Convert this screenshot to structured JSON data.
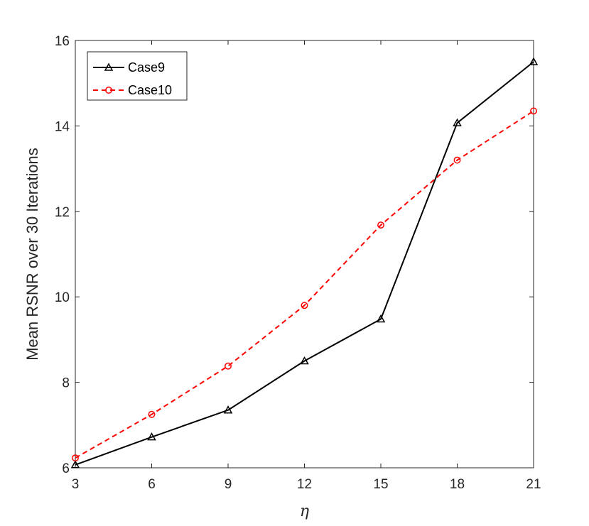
{
  "chart_data": {
    "type": "line",
    "xlabel": "η",
    "ylabel": "Mean RSNR over 30 Iterations",
    "xlim": [
      3,
      21
    ],
    "ylim": [
      6,
      16
    ],
    "xticks": [
      3,
      6,
      9,
      12,
      15,
      18,
      21
    ],
    "yticks": [
      6,
      8,
      10,
      12,
      14,
      16
    ],
    "grid": false,
    "legend_position": "top-left",
    "x": [
      3,
      6,
      9,
      12,
      15,
      18,
      21
    ],
    "series": [
      {
        "name": "Case9",
        "values": [
          6.07,
          6.72,
          7.35,
          8.5,
          9.48,
          14.07,
          15.5
        ],
        "color": "#000000",
        "line_style": "solid",
        "marker": "triangle"
      },
      {
        "name": "Case10",
        "values": [
          6.23,
          7.25,
          8.38,
          9.8,
          11.68,
          13.2,
          14.35
        ],
        "color": "#ff0000",
        "line_style": "dashed",
        "marker": "circle"
      }
    ]
  }
}
